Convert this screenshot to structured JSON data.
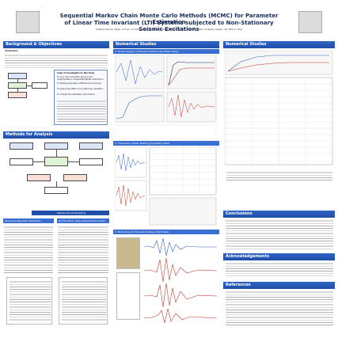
{
  "header": {
    "title_line1": "Sequential Markov Chain Monte Carlo Methods (MCMC) for Parameter Estimation",
    "title_line2": "of Linear Time Invariant (LTI) Systems subjected to Non-Stationary Seismic Excitations",
    "authors": "Mukhat Govali, Dept. of Civil, Architectural and Environmental Engineering, The University of Texas, Austin, TX 78712, USA"
  },
  "sections": {
    "background": "Background & Objectives",
    "introduction": "Introduction",
    "methods": "Methods for Analysis",
    "numerical1": "Numerical Studies",
    "numerical2": "Numerical Studies",
    "conclusions": "Conclusions",
    "acknowledgements": "Acknowledgements",
    "references": "References",
    "math_modelling": "Mathematical Modelling"
  },
  "subheads": {
    "sdof": "1. Single Degree of Freedom System (Synthetic Data)",
    "bear": "2. Three-story Shear Building (Synthetic Data)",
    "multi": "3. Multi-story RC Framed Building (Field Data)",
    "recursive": "Recursive Bayesian Estimation",
    "particle": "Particle Filter (Sequential Markov Chain Monte Carlo)"
  },
  "objectives": {
    "heading": "Goals of investigation in this study",
    "items": [
      "To carry out a simulation study on the implementation of sequential MCMC methods for systems",
      "To identify parameters (stiffness and damping)",
      "To explore the effect of non-stationary excitation",
      "To compare the estimation performance"
    ]
  },
  "colors": {
    "section_blue": "#1f4fa8",
    "title_navy": "#1a2d5a",
    "signal_red": "#c0392b"
  }
}
